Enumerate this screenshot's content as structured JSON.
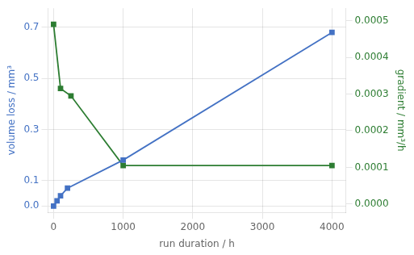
{
  "chart_data": {
    "type": "line",
    "xlabel": "run duration / h",
    "ylabel": "volume loss / mm³",
    "y2label": "gradient / mm³/h",
    "series": [
      {
        "x": [
          0,
          50,
          100,
          200,
          1000,
          4000
        ],
        "values": [
          0.0,
          0.02,
          0.04,
          0.07,
          0.18,
          0.68
        ],
        "color": "#4472c4",
        "marker": "square",
        "axis": "y"
      },
      {
        "x": [
          0,
          100,
          250,
          1000,
          4000
        ],
        "values": [
          0.00049,
          0.000315,
          0.000295,
          0.000105,
          0.000105
        ],
        "color": "#2d7d32",
        "marker": "square",
        "axis": "y2"
      }
    ],
    "xlim": [
      -80,
      4200
    ],
    "xticks": [
      0,
      1000,
      2000,
      3000,
      4000
    ],
    "ylim": [
      -0.025,
      0.775
    ],
    "yticks": [
      {
        "value": 0.0,
        "label": "0.0"
      },
      0.1,
      0.3,
      0.5,
      0.7
    ],
    "y2lim": [
      -2.28e-05,
      0.000534
    ],
    "y2ticks": [
      {
        "value": 0.0,
        "label": "0.0000"
      },
      {
        "value": 0.0001,
        "label": "0.0001"
      },
      {
        "value": 0.0002,
        "label": "0.0002"
      },
      {
        "value": 0.0003,
        "label": "0.0003"
      },
      {
        "value": 0.0004,
        "label": "0.0004"
      },
      {
        "value": 0.0005,
        "label": "0.0005"
      }
    ],
    "grid": true
  }
}
